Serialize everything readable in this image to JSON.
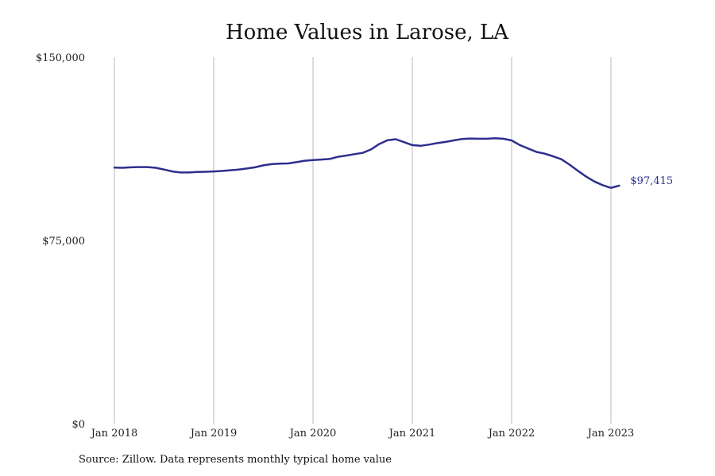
{
  "chart_data": {
    "type": "line",
    "title": "Home Values in Larose, LA",
    "ylim": [
      0,
      150000
    ],
    "y_ticks": [
      {
        "value": 0,
        "label": "$0"
      },
      {
        "value": 75000,
        "label": "$75,000"
      },
      {
        "value": 150000,
        "label": "$150,000"
      }
    ],
    "x_ticks": [
      {
        "date": "2018-01",
        "label": "Jan 2018"
      },
      {
        "date": "2019-01",
        "label": "Jan 2019"
      },
      {
        "date": "2020-01",
        "label": "Jan 2020"
      },
      {
        "date": "2021-01",
        "label": "Jan 2021"
      },
      {
        "date": "2022-01",
        "label": "Jan 2022"
      },
      {
        "date": "2023-01",
        "label": "Jan 2023"
      }
    ],
    "xlim": [
      "2018-01",
      "2023-02"
    ],
    "grid": "vertical",
    "line_color": "#2e2e8f",
    "end_label": "$97,415",
    "series": [
      {
        "x": [
          "2018-01",
          "2018-02",
          "2018-03",
          "2018-04",
          "2018-05",
          "2018-06",
          "2018-07",
          "2018-08",
          "2018-09",
          "2018-10",
          "2018-11",
          "2018-12",
          "2019-01",
          "2019-02",
          "2019-03",
          "2019-04",
          "2019-05",
          "2019-06",
          "2019-07",
          "2019-08",
          "2019-09",
          "2019-10",
          "2019-11",
          "2019-12",
          "2020-01",
          "2020-02",
          "2020-03",
          "2020-04",
          "2020-05",
          "2020-06",
          "2020-07",
          "2020-08",
          "2020-09",
          "2020-10",
          "2020-11",
          "2020-12",
          "2021-01",
          "2021-02",
          "2021-03",
          "2021-04",
          "2021-05",
          "2021-06",
          "2021-07",
          "2021-08",
          "2021-09",
          "2021-10",
          "2021-11",
          "2021-12",
          "2022-01",
          "2022-02",
          "2022-03",
          "2022-04",
          "2022-05",
          "2022-06",
          "2022-07",
          "2022-08",
          "2022-09",
          "2022-10",
          "2022-11",
          "2022-12",
          "2023-01",
          "2023-02"
        ],
        "values": [
          104800,
          104700,
          104900,
          105000,
          105000,
          104700,
          104000,
          103200,
          102800,
          102800,
          103000,
          103100,
          103200,
          103400,
          103700,
          104000,
          104400,
          104900,
          105700,
          106200,
          106400,
          106500,
          107000,
          107600,
          107900,
          108100,
          108300,
          109200,
          109700,
          110300,
          110800,
          112200,
          114400,
          116000,
          116400,
          115200,
          114000,
          113700,
          114200,
          114800,
          115300,
          115900,
          116500,
          116700,
          116600,
          116600,
          116800,
          116600,
          115900,
          114000,
          112600,
          111200,
          110500,
          109400,
          108200,
          106000,
          103500,
          101100,
          99100,
          97600,
          96500,
          97415
        ]
      }
    ]
  },
  "source_text": "Source: Zillow. Data represents monthly typical home value"
}
